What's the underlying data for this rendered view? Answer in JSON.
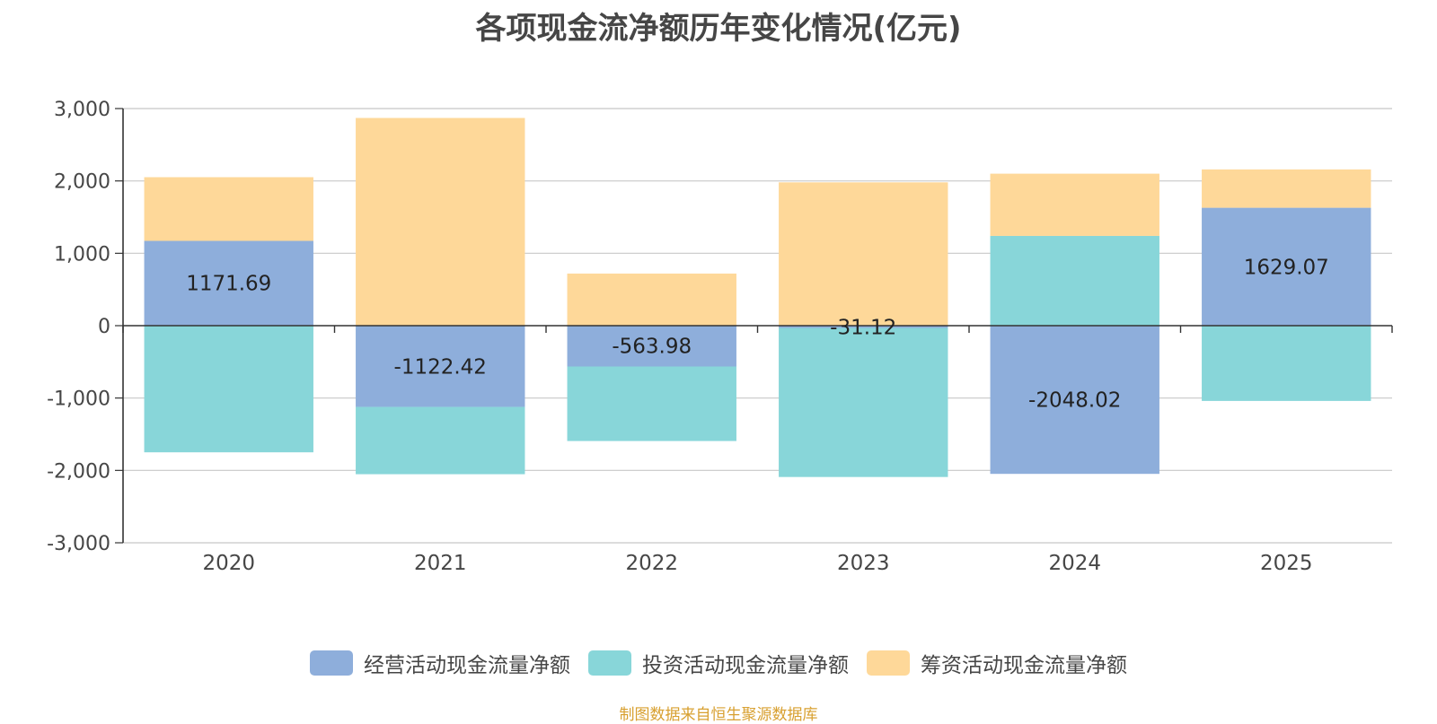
{
  "chart_data": {
    "type": "bar",
    "stacked": true,
    "title": "各项现金流净额历年变化情况(亿元)",
    "categories": [
      "2020",
      "2021",
      "2022",
      "2023",
      "2024",
      "2025"
    ],
    "series": [
      {
        "name": "经营活动现金流量净额",
        "color": "#8eaedb",
        "values": [
          1171.69,
          -1122.42,
          -563.98,
          -31.12,
          -2048.02,
          1629.07
        ],
        "data_labels": [
          "1171.69",
          "-1122.42",
          "-563.98",
          "-31.12",
          "-2048.02",
          "1629.07"
        ]
      },
      {
        "name": "投资活动现金流量净额",
        "color": "#88d6d9",
        "values": [
          -1750,
          -930,
          -1030,
          -2060,
          1240,
          -1040
        ]
      },
      {
        "name": "筹资活动现金流量净额",
        "color": "#fed899",
        "values": [
          880,
          2870,
          720,
          1980,
          860,
          530
        ]
      }
    ],
    "ylim": [
      -3000,
      3000
    ],
    "yticks": [
      3000,
      2000,
      1000,
      0,
      -1000,
      -2000,
      -3000
    ],
    "ytick_labels": [
      "3,000",
      "2,000",
      "1,000",
      "0",
      "-1,000",
      "-2,000",
      "-3,000"
    ],
    "xlabel": "",
    "ylabel": "",
    "grid": true,
    "legend_position": "bottom-center"
  },
  "source_text": "制图数据来自恒生聚源数据库",
  "colors": {
    "axis": "#333333",
    "grid": "#c8c8c8",
    "text": "#464646",
    "source": "#d8a030"
  }
}
